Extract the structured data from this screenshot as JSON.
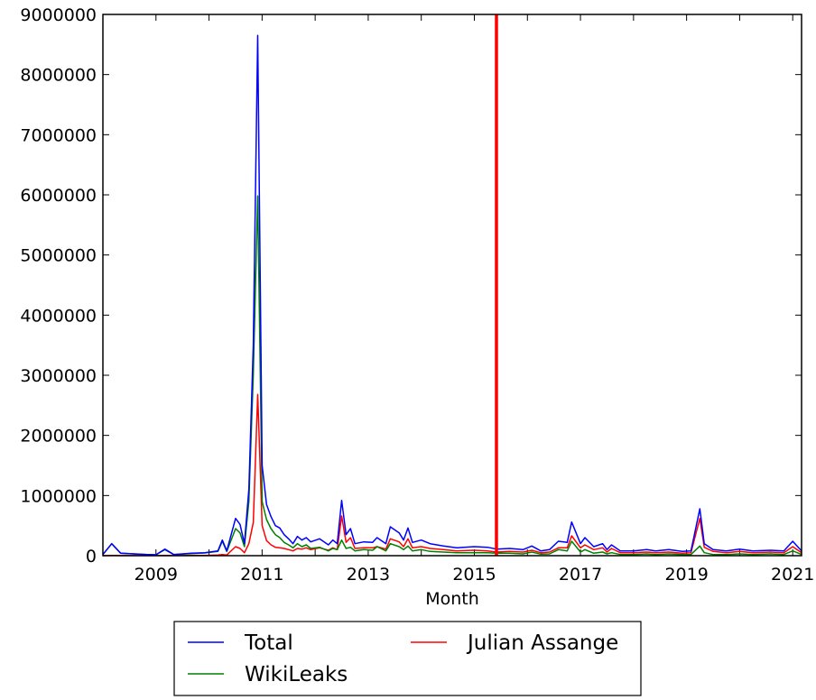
{
  "chart_data": {
    "type": "line",
    "title": "",
    "xlabel": "Month",
    "ylabel": "",
    "xlim": [
      "2008-01",
      "2021-03"
    ],
    "ylim": [
      0,
      9000000
    ],
    "x_ticks": [
      "2009",
      "2011",
      "2013",
      "2015",
      "2017",
      "2019",
      "2021"
    ],
    "y_ticks": [
      "0",
      "1000000",
      "2000000",
      "3000000",
      "4000000",
      "5000000",
      "6000000",
      "7000000",
      "8000000",
      "9000000"
    ],
    "grid": false,
    "legend": "below",
    "vertical_marker": {
      "x": "2015-06",
      "color": "#ff0000"
    },
    "series": [
      {
        "name": "Total",
        "color": "#0000ff",
        "points": [
          [
            "2008-01",
            20000
          ],
          [
            "2008-03",
            200000
          ],
          [
            "2008-05",
            40000
          ],
          [
            "2008-08",
            30000
          ],
          [
            "2008-11",
            20000
          ],
          [
            "2009-01",
            15000
          ],
          [
            "2009-03",
            110000
          ],
          [
            "2009-05",
            20000
          ],
          [
            "2009-09",
            40000
          ],
          [
            "2009-12",
            50000
          ],
          [
            "2010-03",
            80000
          ],
          [
            "2010-04",
            260000
          ],
          [
            "2010-05",
            80000
          ],
          [
            "2010-07",
            620000
          ],
          [
            "2010-08",
            520000
          ],
          [
            "2010-09",
            200000
          ],
          [
            "2010-10",
            1100000
          ],
          [
            "2010-11",
            3500000
          ],
          [
            "2010-12",
            8650000
          ],
          [
            "2011-01",
            1500000
          ],
          [
            "2011-02",
            850000
          ],
          [
            "2011-03",
            650000
          ],
          [
            "2011-04",
            500000
          ],
          [
            "2011-05",
            460000
          ],
          [
            "2011-06",
            350000
          ],
          [
            "2011-07",
            280000
          ],
          [
            "2011-08",
            200000
          ],
          [
            "2011-09",
            320000
          ],
          [
            "2011-10",
            260000
          ],
          [
            "2011-11",
            300000
          ],
          [
            "2011-12",
            230000
          ],
          [
            "2012-02",
            280000
          ],
          [
            "2012-04",
            180000
          ],
          [
            "2012-05",
            260000
          ],
          [
            "2012-06",
            200000
          ],
          [
            "2012-07",
            920000
          ],
          [
            "2012-08",
            350000
          ],
          [
            "2012-09",
            450000
          ],
          [
            "2012-10",
            200000
          ],
          [
            "2012-12",
            230000
          ],
          [
            "2013-02",
            220000
          ],
          [
            "2013-03",
            300000
          ],
          [
            "2013-05",
            200000
          ],
          [
            "2013-06",
            480000
          ],
          [
            "2013-08",
            380000
          ],
          [
            "2013-09",
            260000
          ],
          [
            "2013-10",
            460000
          ],
          [
            "2013-11",
            220000
          ],
          [
            "2014-01",
            260000
          ],
          [
            "2014-03",
            200000
          ],
          [
            "2014-06",
            160000
          ],
          [
            "2014-09",
            130000
          ],
          [
            "2015-01",
            150000
          ],
          [
            "2015-04",
            140000
          ],
          [
            "2015-06",
            110000
          ],
          [
            "2015-09",
            120000
          ],
          [
            "2015-12",
            100000
          ],
          [
            "2016-02",
            160000
          ],
          [
            "2016-04",
            80000
          ],
          [
            "2016-06",
            100000
          ],
          [
            "2016-08",
            240000
          ],
          [
            "2016-10",
            220000
          ],
          [
            "2016-11",
            560000
          ],
          [
            "2017-01",
            200000
          ],
          [
            "2017-02",
            300000
          ],
          [
            "2017-04",
            150000
          ],
          [
            "2017-06",
            200000
          ],
          [
            "2017-07",
            100000
          ],
          [
            "2017-08",
            180000
          ],
          [
            "2017-10",
            80000
          ],
          [
            "2018-01",
            80000
          ],
          [
            "2018-04",
            100000
          ],
          [
            "2018-06",
            80000
          ],
          [
            "2018-09",
            100000
          ],
          [
            "2018-12",
            70000
          ],
          [
            "2019-02",
            80000
          ],
          [
            "2019-04",
            780000
          ],
          [
            "2019-05",
            200000
          ],
          [
            "2019-07",
            100000
          ],
          [
            "2019-10",
            80000
          ],
          [
            "2020-01",
            110000
          ],
          [
            "2020-04",
            80000
          ],
          [
            "2020-08",
            90000
          ],
          [
            "2020-11",
            80000
          ],
          [
            "2021-01",
            240000
          ],
          [
            "2021-03",
            80000
          ]
        ]
      },
      {
        "name": "WikiLeaks",
        "color": "#008000",
        "points": [
          [
            "2008-01",
            20000
          ],
          [
            "2008-03",
            200000
          ],
          [
            "2008-05",
            40000
          ],
          [
            "2008-08",
            30000
          ],
          [
            "2008-11",
            20000
          ],
          [
            "2009-01",
            15000
          ],
          [
            "2009-03",
            100000
          ],
          [
            "2009-05",
            20000
          ],
          [
            "2009-09",
            35000
          ],
          [
            "2009-12",
            45000
          ],
          [
            "2010-03",
            70000
          ],
          [
            "2010-04",
            240000
          ],
          [
            "2010-05",
            70000
          ],
          [
            "2010-07",
            450000
          ],
          [
            "2010-08",
            380000
          ],
          [
            "2010-09",
            150000
          ],
          [
            "2010-10",
            900000
          ],
          [
            "2010-11",
            3000000
          ],
          [
            "2010-12",
            5980000
          ],
          [
            "2011-01",
            900000
          ],
          [
            "2011-02",
            600000
          ],
          [
            "2011-03",
            450000
          ],
          [
            "2011-04",
            350000
          ],
          [
            "2011-05",
            300000
          ],
          [
            "2011-06",
            220000
          ],
          [
            "2011-07",
            180000
          ],
          [
            "2011-08",
            130000
          ],
          [
            "2011-09",
            200000
          ],
          [
            "2011-10",
            150000
          ],
          [
            "2011-11",
            180000
          ],
          [
            "2011-12",
            120000
          ],
          [
            "2012-02",
            140000
          ],
          [
            "2012-04",
            80000
          ],
          [
            "2012-05",
            120000
          ],
          [
            "2012-06",
            100000
          ],
          [
            "2012-07",
            260000
          ],
          [
            "2012-08",
            120000
          ],
          [
            "2012-09",
            140000
          ],
          [
            "2012-10",
            80000
          ],
          [
            "2012-12",
            100000
          ],
          [
            "2013-02",
            90000
          ],
          [
            "2013-03",
            150000
          ],
          [
            "2013-05",
            80000
          ],
          [
            "2013-06",
            200000
          ],
          [
            "2013-08",
            150000
          ],
          [
            "2013-09",
            100000
          ],
          [
            "2013-10",
            160000
          ],
          [
            "2013-11",
            80000
          ],
          [
            "2014-01",
            100000
          ],
          [
            "2014-03",
            70000
          ],
          [
            "2014-06",
            60000
          ],
          [
            "2014-09",
            50000
          ],
          [
            "2015-01",
            50000
          ],
          [
            "2015-04",
            50000
          ],
          [
            "2015-06",
            40000
          ],
          [
            "2015-09",
            40000
          ],
          [
            "2015-12",
            30000
          ],
          [
            "2016-02",
            60000
          ],
          [
            "2016-04",
            25000
          ],
          [
            "2016-06",
            30000
          ],
          [
            "2016-08",
            100000
          ],
          [
            "2016-10",
            80000
          ],
          [
            "2016-11",
            240000
          ],
          [
            "2017-01",
            60000
          ],
          [
            "2017-02",
            100000
          ],
          [
            "2017-04",
            40000
          ],
          [
            "2017-06",
            60000
          ],
          [
            "2017-07",
            30000
          ],
          [
            "2017-08",
            50000
          ],
          [
            "2017-10",
            20000
          ],
          [
            "2018-01",
            20000
          ],
          [
            "2018-04",
            30000
          ],
          [
            "2018-06",
            20000
          ],
          [
            "2018-09",
            30000
          ],
          [
            "2018-12",
            20000
          ],
          [
            "2019-02",
            20000
          ],
          [
            "2019-04",
            160000
          ],
          [
            "2019-05",
            50000
          ],
          [
            "2019-07",
            20000
          ],
          [
            "2019-10",
            20000
          ],
          [
            "2020-01",
            30000
          ],
          [
            "2020-04",
            20000
          ],
          [
            "2020-08",
            30000
          ],
          [
            "2020-11",
            20000
          ],
          [
            "2021-01",
            80000
          ],
          [
            "2021-03",
            20000
          ]
        ]
      },
      {
        "name": "Julian Assange",
        "color": "#ff0000",
        "points": [
          [
            "2008-01",
            0
          ],
          [
            "2008-03",
            5000
          ],
          [
            "2008-05",
            2000
          ],
          [
            "2008-08",
            2000
          ],
          [
            "2008-11",
            2000
          ],
          [
            "2009-01",
            1000
          ],
          [
            "2009-03",
            5000
          ],
          [
            "2009-05",
            2000
          ],
          [
            "2009-09",
            3000
          ],
          [
            "2009-12",
            5000
          ],
          [
            "2010-03",
            10000
          ],
          [
            "2010-04",
            20000
          ],
          [
            "2010-05",
            10000
          ],
          [
            "2010-07",
            150000
          ],
          [
            "2010-08",
            120000
          ],
          [
            "2010-09",
            50000
          ],
          [
            "2010-10",
            200000
          ],
          [
            "2010-11",
            550000
          ],
          [
            "2010-12",
            2680000
          ],
          [
            "2011-01",
            500000
          ],
          [
            "2011-02",
            250000
          ],
          [
            "2011-03",
            180000
          ],
          [
            "2011-04",
            140000
          ],
          [
            "2011-05",
            130000
          ],
          [
            "2011-06",
            120000
          ],
          [
            "2011-07",
            100000
          ],
          [
            "2011-08",
            80000
          ],
          [
            "2011-09",
            120000
          ],
          [
            "2011-10",
            110000
          ],
          [
            "2011-11",
            130000
          ],
          [
            "2011-12",
            100000
          ],
          [
            "2012-02",
            130000
          ],
          [
            "2012-04",
            90000
          ],
          [
            "2012-05",
            130000
          ],
          [
            "2012-06",
            100000
          ],
          [
            "2012-07",
            660000
          ],
          [
            "2012-08",
            220000
          ],
          [
            "2012-09",
            300000
          ],
          [
            "2012-10",
            120000
          ],
          [
            "2012-12",
            130000
          ],
          [
            "2013-02",
            130000
          ],
          [
            "2013-03",
            150000
          ],
          [
            "2013-05",
            110000
          ],
          [
            "2013-06",
            280000
          ],
          [
            "2013-08",
            230000
          ],
          [
            "2013-09",
            150000
          ],
          [
            "2013-10",
            280000
          ],
          [
            "2013-11",
            130000
          ],
          [
            "2014-01",
            150000
          ],
          [
            "2014-03",
            120000
          ],
          [
            "2014-06",
            100000
          ],
          [
            "2014-09",
            80000
          ],
          [
            "2015-01",
            90000
          ],
          [
            "2015-04",
            80000
          ],
          [
            "2015-06",
            60000
          ],
          [
            "2015-09",
            70000
          ],
          [
            "2015-12",
            60000
          ],
          [
            "2016-02",
            90000
          ],
          [
            "2016-04",
            50000
          ],
          [
            "2016-06",
            60000
          ],
          [
            "2016-08",
            130000
          ],
          [
            "2016-10",
            130000
          ],
          [
            "2016-11",
            330000
          ],
          [
            "2017-01",
            130000
          ],
          [
            "2017-02",
            180000
          ],
          [
            "2017-04",
            100000
          ],
          [
            "2017-06",
            130000
          ],
          [
            "2017-07",
            60000
          ],
          [
            "2017-08",
            120000
          ],
          [
            "2017-10",
            50000
          ],
          [
            "2018-01",
            50000
          ],
          [
            "2018-04",
            60000
          ],
          [
            "2018-06",
            50000
          ],
          [
            "2018-09",
            60000
          ],
          [
            "2018-12",
            40000
          ],
          [
            "2019-02",
            50000
          ],
          [
            "2019-04",
            620000
          ],
          [
            "2019-05",
            140000
          ],
          [
            "2019-07",
            70000
          ],
          [
            "2019-10",
            50000
          ],
          [
            "2020-01",
            70000
          ],
          [
            "2020-04",
            50000
          ],
          [
            "2020-08",
            60000
          ],
          [
            "2020-11",
            50000
          ],
          [
            "2021-01",
            150000
          ],
          [
            "2021-03",
            50000
          ]
        ]
      }
    ]
  }
}
